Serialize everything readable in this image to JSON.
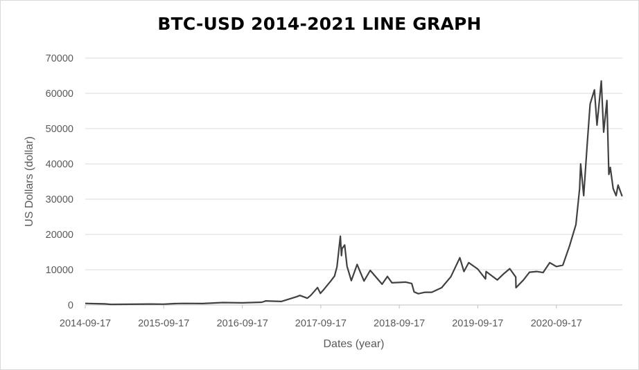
{
  "chart_data": {
    "type": "line",
    "title": "BTC-USD 2014-2021 LINE GRAPH",
    "xlabel": "Dates (year)",
    "ylabel": "US Dollars (dollar)",
    "x_ticks": [
      "2014-09-17",
      "2015-09-17",
      "2016-09-17",
      "2017-09-17",
      "2018-09-17",
      "2019-09-17",
      "2020-09-17"
    ],
    "y_ticks": [
      0,
      10000,
      20000,
      30000,
      40000,
      50000,
      60000,
      70000
    ],
    "ylim": [
      0,
      70000
    ],
    "xlim": [
      "2014-09-17",
      "2021-07-21"
    ],
    "grid": "horizontal",
    "line_color": "#404040",
    "series": [
      {
        "x": [
          "2014-09-17",
          "2014-12-17",
          "2015-01-14",
          "2015-04-17",
          "2015-07-17",
          "2015-09-17",
          "2015-11-04",
          "2015-12-17",
          "2016-03-17",
          "2016-06-17",
          "2016-09-17",
          "2016-12-17",
          "2017-01-04",
          "2017-03-17",
          "2017-05-25",
          "2017-06-12",
          "2017-07-16",
          "2017-08-01",
          "2017-09-02",
          "2017-09-15",
          "2017-10-01",
          "2017-11-01",
          "2017-11-20",
          "2017-12-01",
          "2017-12-17",
          "2017-12-22",
          "2017-12-25",
          "2018-01-06",
          "2018-01-17",
          "2018-02-06",
          "2018-03-05",
          "2018-04-06",
          "2018-05-05",
          "2018-06-29",
          "2018-07-24",
          "2018-08-14",
          "2018-09-17",
          "2018-10-17",
          "2018-11-14",
          "2018-11-25",
          "2018-12-15",
          "2019-01-15",
          "2019-02-15",
          "2019-04-02",
          "2019-05-15",
          "2019-06-26",
          "2019-07-15",
          "2019-08-06",
          "2019-09-17",
          "2019-10-23",
          "2019-10-26",
          "2019-12-17",
          "2020-01-17",
          "2020-02-13",
          "2020-03-12",
          "2020-03-13",
          "2020-04-17",
          "2020-05-15",
          "2020-06-17",
          "2020-07-17",
          "2020-08-17",
          "2020-09-17",
          "2020-10-17",
          "2020-11-17",
          "2020-12-17",
          "2021-01-03",
          "2021-01-08",
          "2021-01-22",
          "2021-02-08",
          "2021-02-21",
          "2021-03-13",
          "2021-03-25",
          "2021-04-14",
          "2021-04-25",
          "2021-05-10",
          "2021-05-19",
          "2021-05-26",
          "2021-06-08",
          "2021-06-22",
          "2021-07-01",
          "2021-07-20"
        ],
        "values": [
          457,
          320,
          178,
          222,
          280,
          231,
          400,
          455,
          415,
          690,
          608,
          790,
          1154,
          1000,
          2300,
          2700,
          1914,
          2700,
          4950,
          3300,
          4400,
          6700,
          8200,
          10800,
          19500,
          14000,
          16000,
          17000,
          11000,
          6900,
          11500,
          6800,
          9800,
          5900,
          8100,
          6300,
          6400,
          6500,
          6100,
          3700,
          3200,
          3600,
          3600,
          4900,
          8000,
          13400,
          9500,
          12000,
          10200,
          7400,
          9500,
          7100,
          8900,
          10300,
          7900,
          4900,
          7100,
          9300,
          9500,
          9200,
          12000,
          10900,
          11300,
          16700,
          22800,
          33000,
          40000,
          31000,
          46000,
          57000,
          61000,
          51000,
          63500,
          49000,
          58000,
          37000,
          39000,
          33000,
          31000,
          34000,
          30800
        ]
      }
    ]
  }
}
